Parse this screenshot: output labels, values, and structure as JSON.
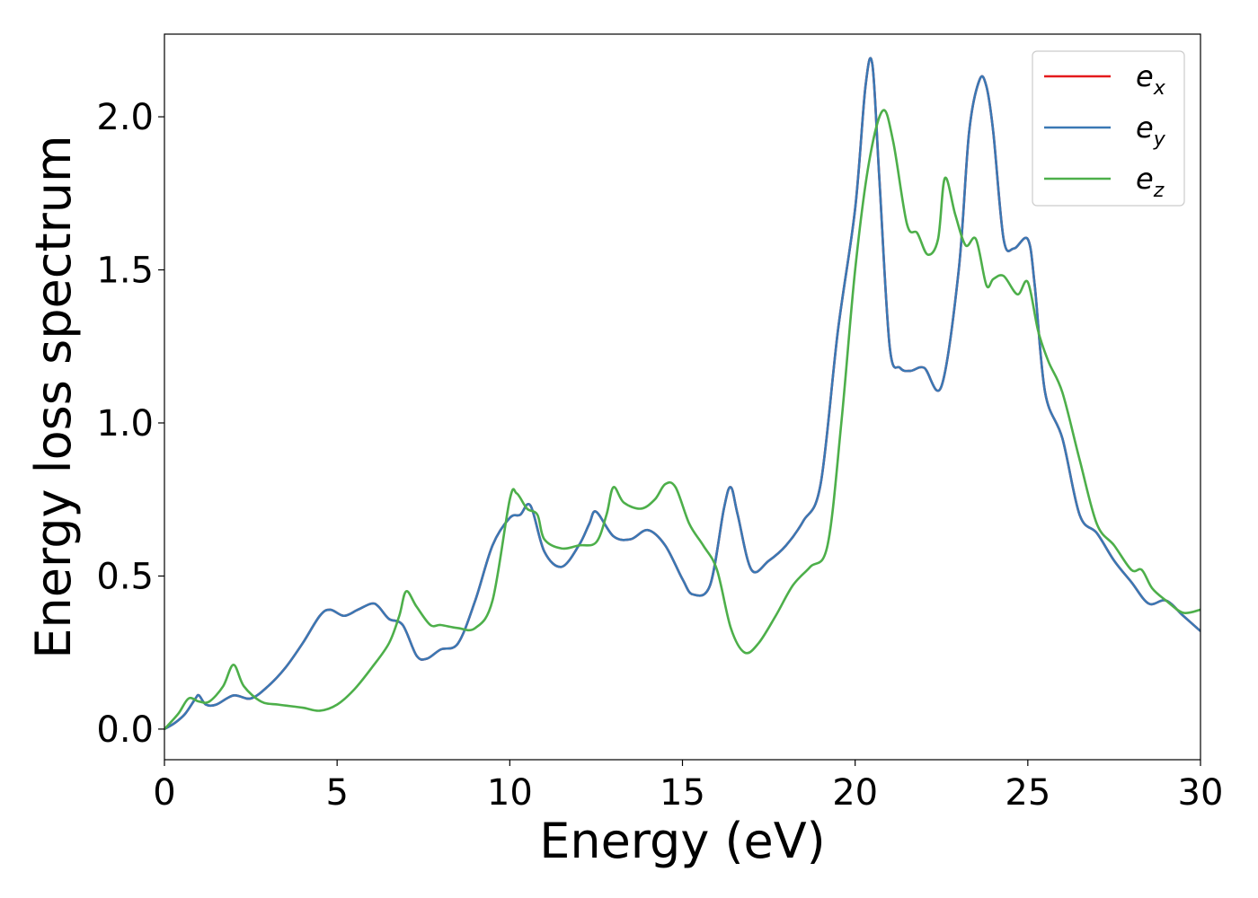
{
  "chart_data": {
    "type": "line",
    "title": "",
    "xlabel": "Energy (eV)",
    "ylabel": "Energy loss spectrum",
    "xlim": [
      0,
      30
    ],
    "ylim": [
      -0.1,
      2.27
    ],
    "xticks": [
      0,
      5,
      10,
      15,
      20,
      25,
      30
    ],
    "xtick_labels": [
      "0",
      "5",
      "10",
      "15",
      "20",
      "25",
      "30"
    ],
    "yticks": [
      0.0,
      0.5,
      1.0,
      1.5,
      2.0
    ],
    "ytick_labels": [
      "0.0",
      "0.5",
      "1.0",
      "1.5",
      "2.0"
    ],
    "grid": false,
    "legend_position": "top-right",
    "series": [
      {
        "name": "e",
        "subscript": "x",
        "color": "#e41a1c",
        "x": [
          0,
          0.3,
          0.6,
          0.9,
          1.0,
          1.2,
          1.5,
          2.0,
          2.5,
          3.0,
          3.5,
          4.0,
          4.5,
          4.8,
          5.2,
          5.6,
          6.0,
          6.2,
          6.5,
          6.9,
          7.3,
          7.6,
          8.0,
          8.5,
          9.0,
          9.5,
          10.0,
          10.3,
          10.6,
          11.0,
          11.5,
          12.0,
          12.3,
          12.5,
          13.0,
          13.5,
          14.0,
          14.5,
          15.0,
          15.3,
          15.8,
          16.2,
          16.4,
          16.6,
          17.0,
          17.5,
          18.0,
          18.5,
          19.0,
          19.5,
          20.0,
          20.3,
          20.5,
          20.7,
          21.0,
          21.3,
          21.6,
          22.0,
          22.5,
          23.0,
          23.3,
          23.6,
          23.8,
          24.0,
          24.3,
          24.6,
          25.0,
          25.2,
          25.5,
          26.0,
          26.5,
          27.0,
          27.5,
          28.0,
          28.5,
          29.0,
          29.5,
          30.0
        ],
        "values": [
          0.0,
          0.02,
          0.05,
          0.1,
          0.11,
          0.08,
          0.08,
          0.11,
          0.1,
          0.14,
          0.2,
          0.28,
          0.37,
          0.39,
          0.37,
          0.39,
          0.41,
          0.4,
          0.36,
          0.34,
          0.24,
          0.23,
          0.26,
          0.28,
          0.42,
          0.6,
          0.69,
          0.7,
          0.73,
          0.58,
          0.53,
          0.6,
          0.67,
          0.71,
          0.63,
          0.62,
          0.65,
          0.6,
          0.49,
          0.44,
          0.47,
          0.72,
          0.79,
          0.7,
          0.52,
          0.55,
          0.6,
          0.68,
          0.8,
          1.3,
          1.7,
          2.1,
          2.17,
          1.8,
          1.25,
          1.18,
          1.17,
          1.18,
          1.12,
          1.5,
          1.95,
          2.12,
          2.1,
          1.95,
          1.6,
          1.57,
          1.6,
          1.45,
          1.1,
          0.95,
          0.7,
          0.64,
          0.55,
          0.48,
          0.41,
          0.42,
          0.37,
          0.32
        ]
      },
      {
        "name": "e",
        "subscript": "y",
        "color": "#3a78b4",
        "x": [
          0,
          0.3,
          0.6,
          0.9,
          1.0,
          1.2,
          1.5,
          2.0,
          2.5,
          3.0,
          3.5,
          4.0,
          4.5,
          4.8,
          5.2,
          5.6,
          6.0,
          6.2,
          6.5,
          6.9,
          7.3,
          7.6,
          8.0,
          8.5,
          9.0,
          9.5,
          10.0,
          10.3,
          10.6,
          11.0,
          11.5,
          12.0,
          12.3,
          12.5,
          13.0,
          13.5,
          14.0,
          14.5,
          15.0,
          15.3,
          15.8,
          16.2,
          16.4,
          16.6,
          17.0,
          17.5,
          18.0,
          18.5,
          19.0,
          19.5,
          20.0,
          20.3,
          20.5,
          20.7,
          21.0,
          21.3,
          21.6,
          22.0,
          22.5,
          23.0,
          23.3,
          23.6,
          23.8,
          24.0,
          24.3,
          24.6,
          25.0,
          25.2,
          25.5,
          26.0,
          26.5,
          27.0,
          27.5,
          28.0,
          28.5,
          29.0,
          29.5,
          30.0
        ],
        "values": [
          0.0,
          0.02,
          0.05,
          0.1,
          0.11,
          0.08,
          0.08,
          0.11,
          0.1,
          0.14,
          0.2,
          0.28,
          0.37,
          0.39,
          0.37,
          0.39,
          0.41,
          0.4,
          0.36,
          0.34,
          0.24,
          0.23,
          0.26,
          0.28,
          0.42,
          0.6,
          0.69,
          0.7,
          0.73,
          0.58,
          0.53,
          0.6,
          0.67,
          0.71,
          0.63,
          0.62,
          0.65,
          0.6,
          0.49,
          0.44,
          0.47,
          0.72,
          0.79,
          0.7,
          0.52,
          0.55,
          0.6,
          0.68,
          0.8,
          1.3,
          1.7,
          2.1,
          2.17,
          1.8,
          1.25,
          1.18,
          1.17,
          1.18,
          1.12,
          1.5,
          1.95,
          2.12,
          2.1,
          1.95,
          1.6,
          1.57,
          1.6,
          1.45,
          1.1,
          0.95,
          0.7,
          0.64,
          0.55,
          0.48,
          0.41,
          0.42,
          0.37,
          0.32
        ]
      },
      {
        "name": "e",
        "subscript": "z",
        "color": "#4daf4a",
        "x": [
          0,
          0.4,
          0.7,
          1.0,
          1.3,
          1.7,
          2.0,
          2.3,
          2.8,
          3.3,
          4.0,
          4.5,
          5.0,
          5.5,
          6.0,
          6.5,
          6.8,
          7.0,
          7.3,
          7.7,
          8.0,
          8.5,
          9.0,
          9.5,
          10.0,
          10.2,
          10.5,
          10.8,
          11.0,
          11.5,
          12.0,
          12.5,
          12.8,
          13.0,
          13.3,
          13.8,
          14.2,
          14.5,
          14.8,
          15.2,
          15.6,
          16.0,
          16.4,
          16.8,
          17.2,
          17.7,
          18.2,
          18.7,
          19.2,
          19.6,
          20.0,
          20.4,
          20.8,
          21.1,
          21.5,
          21.8,
          22.1,
          22.4,
          22.6,
          22.9,
          23.2,
          23.5,
          23.8,
          24.0,
          24.3,
          24.7,
          25.0,
          25.3,
          25.6,
          26.0,
          26.5,
          27.0,
          27.5,
          28.0,
          28.3,
          28.6,
          29.0,
          29.5,
          30.0
        ],
        "values": [
          0.0,
          0.05,
          0.1,
          0.09,
          0.09,
          0.14,
          0.21,
          0.14,
          0.09,
          0.08,
          0.07,
          0.06,
          0.08,
          0.13,
          0.2,
          0.28,
          0.37,
          0.45,
          0.4,
          0.34,
          0.34,
          0.33,
          0.33,
          0.42,
          0.75,
          0.77,
          0.72,
          0.7,
          0.62,
          0.59,
          0.6,
          0.61,
          0.7,
          0.79,
          0.74,
          0.72,
          0.75,
          0.8,
          0.79,
          0.67,
          0.6,
          0.52,
          0.33,
          0.25,
          0.28,
          0.37,
          0.47,
          0.53,
          0.6,
          1.0,
          1.5,
          1.85,
          2.02,
          1.92,
          1.65,
          1.62,
          1.55,
          1.6,
          1.8,
          1.68,
          1.58,
          1.6,
          1.45,
          1.47,
          1.48,
          1.42,
          1.46,
          1.3,
          1.2,
          1.1,
          0.88,
          0.67,
          0.6,
          0.52,
          0.52,
          0.46,
          0.42,
          0.38,
          0.39
        ]
      }
    ]
  }
}
